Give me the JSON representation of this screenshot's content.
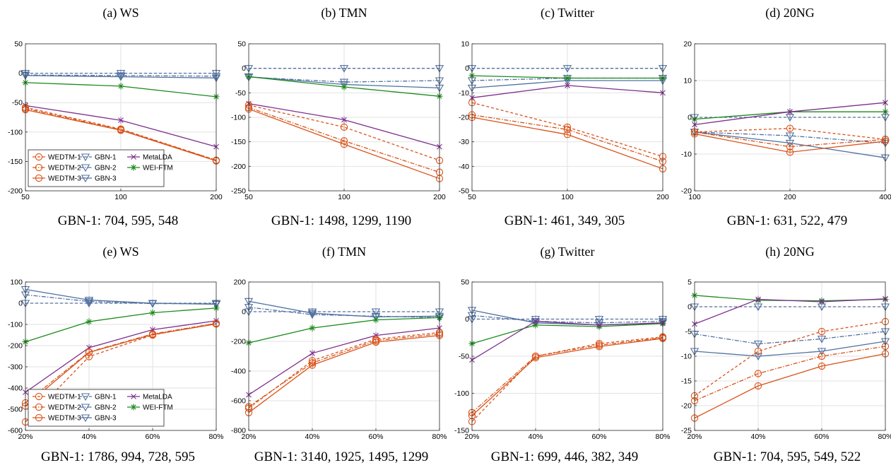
{
  "colors": {
    "wedtm": "#d95319",
    "gbn": "#5070a0",
    "metalda": "#7e2f8e",
    "weiftm": "#1c8a1c",
    "grid": "#e2e2e2",
    "axis": "#262626"
  },
  "legend_entries": [
    {
      "name": "WEDTM-1",
      "family": "wedtm",
      "marker": "circle",
      "dash": "4,3"
    },
    {
      "name": "GBN-1",
      "family": "gbn",
      "marker": "triangle",
      "dash": "4,3"
    },
    {
      "name": "MetaLDA",
      "family": "metalda",
      "marker": "x",
      "dash": ""
    },
    {
      "name": "WEDTM-2",
      "family": "wedtm",
      "marker": "circle",
      "dash": "6,2,1.5,2"
    },
    {
      "name": "GBN-2",
      "family": "gbn",
      "marker": "triangle",
      "dash": "6,2,1.5,2"
    },
    {
      "name": "WEI-FTM",
      "family": "weiftm",
      "marker": "star",
      "dash": ""
    },
    {
      "name": "WEDTM-3",
      "family": "wedtm",
      "marker": "circle",
      "dash": ""
    },
    {
      "name": "GBN-3",
      "family": "gbn",
      "marker": "triangle",
      "dash": ""
    }
  ],
  "chart_data": [
    {
      "panel": "a",
      "type": "line",
      "title": "(a) WS",
      "caption": "GBN-1: 704, 595, 548",
      "categories": [
        "50",
        "100",
        "200"
      ],
      "ylim": [
        -200,
        50
      ],
      "yticks": [
        "50",
        "0",
        "-50",
        "-100",
        "-150",
        "-200"
      ],
      "grid": true,
      "legend": "bottom-left",
      "series": [
        {
          "name": "GBN-1",
          "values": [
            0,
            0,
            0
          ]
        },
        {
          "name": "GBN-2",
          "values": [
            -3,
            -4,
            -5
          ]
        },
        {
          "name": "GBN-3",
          "values": [
            -4,
            -6,
            -8
          ]
        },
        {
          "name": "WEI-FTM",
          "values": [
            -16,
            -22,
            -40
          ]
        },
        {
          "name": "MetaLDA",
          "values": [
            -55,
            -80,
            -125
          ]
        },
        {
          "name": "WEDTM-1",
          "values": [
            -58,
            -95,
            -148
          ]
        },
        {
          "name": "WEDTM-2",
          "values": [
            -60,
            -96,
            -148
          ]
        },
        {
          "name": "WEDTM-3",
          "values": [
            -62,
            -97,
            -149
          ]
        }
      ]
    },
    {
      "panel": "b",
      "type": "line",
      "title": "(b) TMN",
      "caption": "GBN-1: 1498, 1299, 1190",
      "categories": [
        "50",
        "100",
        "200"
      ],
      "ylim": [
        -250,
        50
      ],
      "yticks": [
        "50",
        "0",
        "-50",
        "-100",
        "-150",
        "-200",
        "-250"
      ],
      "grid": true,
      "legend": "",
      "series": [
        {
          "name": "GBN-1",
          "values": [
            0,
            0,
            0
          ]
        },
        {
          "name": "GBN-2",
          "values": [
            -18,
            -28,
            -25
          ]
        },
        {
          "name": "GBN-3",
          "values": [
            -17,
            -33,
            -40
          ]
        },
        {
          "name": "WEI-FTM",
          "values": [
            -17,
            -38,
            -57
          ]
        },
        {
          "name": "MetaLDA",
          "values": [
            -72,
            -105,
            -160
          ]
        },
        {
          "name": "WEDTM-1",
          "values": [
            -75,
            -120,
            -188
          ]
        },
        {
          "name": "WEDTM-2",
          "values": [
            -80,
            -148,
            -212
          ]
        },
        {
          "name": "WEDTM-3",
          "values": [
            -83,
            -155,
            -225
          ]
        }
      ]
    },
    {
      "panel": "c",
      "type": "line",
      "title": "(c) Twitter",
      "caption": "GBN-1: 461, 349, 305",
      "categories": [
        "50",
        "100",
        "200"
      ],
      "ylim": [
        -50,
        10
      ],
      "yticks": [
        "10",
        "0",
        "-10",
        "-20",
        "-30",
        "-40",
        "-50"
      ],
      "grid": true,
      "legend": "",
      "series": [
        {
          "name": "GBN-1",
          "values": [
            0,
            0,
            0
          ]
        },
        {
          "name": "GBN-2",
          "values": [
            -5,
            -4,
            -4
          ]
        },
        {
          "name": "GBN-3",
          "values": [
            -8,
            -5,
            -5
          ]
        },
        {
          "name": "WEI-FTM",
          "values": [
            -3,
            -4,
            -4
          ]
        },
        {
          "name": "MetaLDA",
          "values": [
            -12,
            -7,
            -10
          ]
        },
        {
          "name": "WEDTM-1",
          "values": [
            -14,
            -24,
            -36
          ]
        },
        {
          "name": "WEDTM-2",
          "values": [
            -19,
            -25,
            -38
          ]
        },
        {
          "name": "WEDTM-3",
          "values": [
            -20,
            -27,
            -41
          ]
        }
      ]
    },
    {
      "panel": "d",
      "type": "line",
      "title": "(d) 20NG",
      "caption": "GBN-1: 631, 522, 479",
      "categories": [
        "100",
        "200",
        "400"
      ],
      "ylim": [
        -20,
        20
      ],
      "yticks": [
        "20",
        "10",
        "0",
        "-10",
        "-20"
      ],
      "grid": true,
      "legend": "",
      "series": [
        {
          "name": "GBN-1",
          "values": [
            0,
            0,
            0
          ]
        },
        {
          "name": "GBN-2",
          "values": [
            -4,
            -5,
            -7
          ]
        },
        {
          "name": "GBN-3",
          "values": [
            -4,
            -7,
            -11
          ]
        },
        {
          "name": "WEI-FTM",
          "values": [
            -0.5,
            1.5,
            1.5
          ]
        },
        {
          "name": "MetaLDA",
          "values": [
            -2,
            1.5,
            4
          ]
        },
        {
          "name": "WEDTM-1",
          "values": [
            -4,
            -3,
            -6
          ]
        },
        {
          "name": "WEDTM-2",
          "values": [
            -4,
            -8,
            -6
          ]
        },
        {
          "name": "WEDTM-3",
          "values": [
            -4.5,
            -9.5,
            -6.5
          ]
        }
      ]
    },
    {
      "panel": "e",
      "type": "line",
      "title": "(e) WS",
      "caption": "GBN-1: 1786, 994, 728, 595",
      "categories": [
        "20%",
        "40%",
        "60%",
        "80%"
      ],
      "ylim": [
        -600,
        100
      ],
      "yticks": [
        "100",
        "0",
        "-100",
        "-200",
        "-300",
        "-400",
        "-500",
        "-600"
      ],
      "grid": true,
      "legend": "bottom-left",
      "series": [
        {
          "name": "GBN-1",
          "values": [
            0,
            0,
            0,
            0
          ]
        },
        {
          "name": "GBN-2",
          "values": [
            40,
            8,
            -2,
            -2
          ]
        },
        {
          "name": "GBN-3",
          "values": [
            65,
            15,
            0,
            -5
          ]
        },
        {
          "name": "WEI-FTM",
          "values": [
            -182,
            -87,
            -45,
            -23
          ]
        },
        {
          "name": "MetaLDA",
          "values": [
            -420,
            -210,
            -125,
            -83
          ]
        },
        {
          "name": "WEDTM-1",
          "values": [
            -560,
            -252,
            -150,
            -95
          ]
        },
        {
          "name": "WEDTM-2",
          "values": [
            -470,
            -230,
            -145,
            -95
          ]
        },
        {
          "name": "WEDTM-3",
          "values": [
            -485,
            -232,
            -148,
            -98
          ]
        }
      ]
    },
    {
      "panel": "f",
      "type": "line",
      "title": "(f) TMN",
      "caption": "GBN-1: 3140, 1925, 1495, 1299",
      "categories": [
        "20%",
        "40%",
        "60%",
        "80%"
      ],
      "ylim": [
        -800,
        200
      ],
      "yticks": [
        "200",
        "0",
        "-200",
        "-400",
        "-600",
        "-800"
      ],
      "grid": true,
      "legend": "",
      "series": [
        {
          "name": "GBN-1",
          "values": [
            0,
            0,
            0,
            0
          ]
        },
        {
          "name": "GBN-2",
          "values": [
            30,
            -20,
            -30,
            -40
          ]
        },
        {
          "name": "GBN-3",
          "values": [
            70,
            -10,
            -35,
            -30
          ]
        },
        {
          "name": "WEI-FTM",
          "values": [
            -210,
            -110,
            -55,
            -40
          ]
        },
        {
          "name": "MetaLDA",
          "values": [
            -560,
            -280,
            -160,
            -110
          ]
        },
        {
          "name": "WEDTM-1",
          "values": [
            -650,
            -330,
            -185,
            -140
          ]
        },
        {
          "name": "WEDTM-2",
          "values": [
            -640,
            -345,
            -195,
            -150
          ]
        },
        {
          "name": "WEDTM-3",
          "values": [
            -680,
            -360,
            -205,
            -160
          ]
        }
      ]
    },
    {
      "panel": "g",
      "type": "line",
      "title": "(g) Twitter",
      "caption": "GBN-1: 699, 446, 382, 349",
      "categories": [
        "20%",
        "40%",
        "60%",
        "80%"
      ],
      "ylim": [
        -150,
        50
      ],
      "yticks": [
        "50",
        "0",
        "-50",
        "-100",
        "-150"
      ],
      "grid": true,
      "legend": "",
      "series": [
        {
          "name": "GBN-1",
          "values": [
            0,
            0,
            0,
            0
          ]
        },
        {
          "name": "GBN-2",
          "values": [
            5,
            -3,
            -5,
            -3
          ]
        },
        {
          "name": "GBN-3",
          "values": [
            12,
            -5,
            -8,
            -5
          ]
        },
        {
          "name": "WEI-FTM",
          "values": [
            -33,
            -8,
            -10,
            -6
          ]
        },
        {
          "name": "MetaLDA",
          "values": [
            -55,
            -3,
            -8,
            -5
          ]
        },
        {
          "name": "WEDTM-1",
          "values": [
            -138,
            -50,
            -33,
            -24
          ]
        },
        {
          "name": "WEDTM-2",
          "values": [
            -126,
            -50,
            -35,
            -25
          ]
        },
        {
          "name": "WEDTM-3",
          "values": [
            -130,
            -52,
            -37,
            -26
          ]
        }
      ]
    },
    {
      "panel": "h",
      "type": "line",
      "title": "(h) 20NG",
      "caption": "GBN-1: 704, 595, 549, 522",
      "categories": [
        "20%",
        "40%",
        "60%",
        "80%"
      ],
      "ylim": [
        -25,
        5
      ],
      "yticks": [
        "5",
        "0",
        "-5",
        "-10",
        "-15",
        "-20",
        "-25"
      ],
      "grid": true,
      "legend": "",
      "series": [
        {
          "name": "GBN-1",
          "values": [
            0,
            0,
            0,
            0
          ]
        },
        {
          "name": "GBN-2",
          "values": [
            -5.5,
            -7.5,
            -6.5,
            -5
          ]
        },
        {
          "name": "GBN-3",
          "values": [
            -9,
            -10,
            -9,
            -7
          ]
        },
        {
          "name": "WEI-FTM",
          "values": [
            2.3,
            1.3,
            1.2,
            1.5
          ]
        },
        {
          "name": "MetaLDA",
          "values": [
            -3.5,
            1.5,
            1.0,
            1.6
          ]
        },
        {
          "name": "WEDTM-1",
          "values": [
            -18,
            -9,
            -5,
            -3
          ]
        },
        {
          "name": "WEDTM-2",
          "values": [
            -19,
            -13.5,
            -10,
            -8
          ]
        },
        {
          "name": "WEDTM-3",
          "values": [
            -22.5,
            -16,
            -12,
            -9.5
          ]
        }
      ]
    }
  ]
}
